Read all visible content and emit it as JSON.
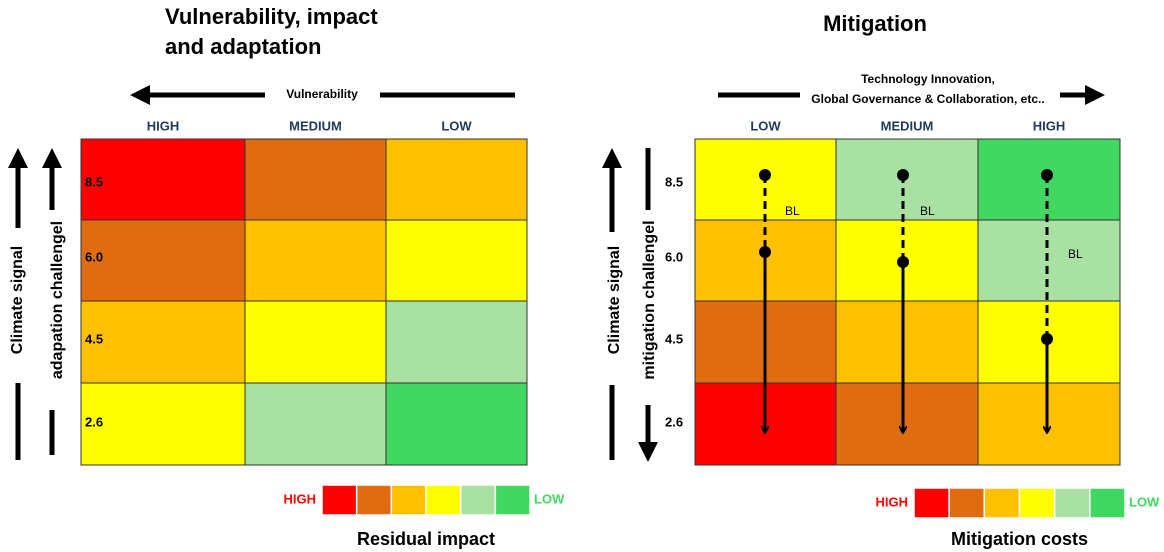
{
  "left": {
    "title": [
      "Vulnerability, impact",
      "and adaptation"
    ],
    "axis_label": [
      "Vulnerability"
    ],
    "columns": [
      "HIGH",
      "MEDIUM",
      "LOW"
    ],
    "rows": [
      "8.5",
      "6.0",
      "4.5",
      "2.6"
    ],
    "y_labels": [
      "Climate signal",
      "adapation challengel"
    ],
    "cells": [
      [
        "#ff0000",
        "#e06c12",
        "#ffc000"
      ],
      [
        "#e06c12",
        "#ffc000",
        "#ffff00"
      ],
      [
        "#ffc000",
        "#ffff00",
        "#a9e1a2"
      ],
      [
        "#ffff00",
        "#a9e1a2",
        "#40d860"
      ]
    ],
    "legend": {
      "high": "HIGH",
      "low": "LOW",
      "title": "Residual impact"
    }
  },
  "right": {
    "title": [
      "Mitigation"
    ],
    "axis_label": [
      "Technology Innovation,",
      "Global Governance & Collaboration, etc.."
    ],
    "columns": [
      "LOW",
      "MEDIUM",
      "HIGH"
    ],
    "rows": [
      "8.5",
      "6.0",
      "4.5",
      "2.6"
    ],
    "y_labels": [
      "Climate signal",
      "mitigation challengel"
    ],
    "cells": [
      [
        "#ffff00",
        "#a9e1a2",
        "#40d860"
      ],
      [
        "#ffc000",
        "#ffff00",
        "#a9e1a2"
      ],
      [
        "#e06c12",
        "#ffc000",
        "#ffff00"
      ],
      [
        "#ff0000",
        "#e06c12",
        "#ffc000"
      ]
    ],
    "annotations": [
      "BL",
      "BL",
      "BL"
    ],
    "legend": {
      "high": "HIGH",
      "low": "LOW",
      "title": "Mitigation costs"
    }
  },
  "legend_colors": [
    "#ff0000",
    "#e06c12",
    "#ffc000",
    "#ffff00",
    "#a9e1a2",
    "#40d860"
  ]
}
